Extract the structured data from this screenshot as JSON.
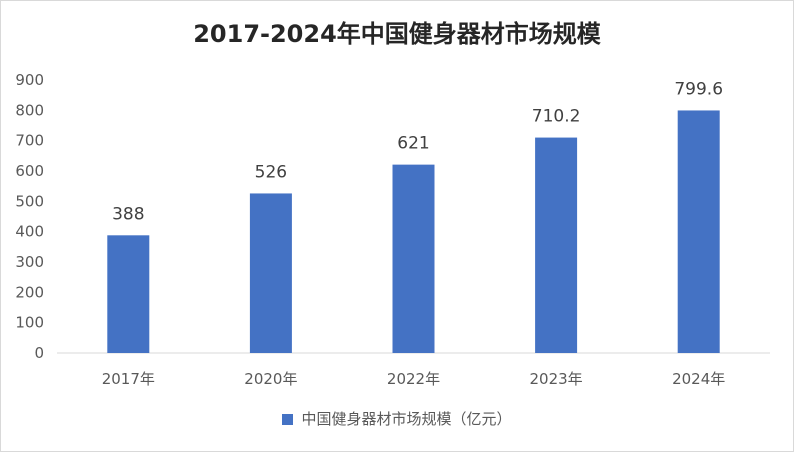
{
  "chart_data": {
    "type": "bar",
    "title": "2017-2024年中国健身器材市场规模",
    "categories": [
      "2017年",
      "2020年",
      "2022年",
      "2023年",
      "2024年"
    ],
    "series": [
      {
        "name": "中国健身器材市场规模（亿元）",
        "values": [
          388,
          526,
          621,
          710.2,
          799.6
        ]
      }
    ],
    "data_labels": [
      "388",
      "526",
      "621",
      "710.2",
      "799.6"
    ],
    "y_ticks": [
      "0",
      "100",
      "200",
      "300",
      "400",
      "500",
      "600",
      "700",
      "800",
      "900"
    ],
    "ylim": [
      0,
      900
    ],
    "xlabel": "",
    "ylabel": "",
    "grid": false,
    "legend_position": "bottom",
    "bar_color": "#4472c4"
  }
}
